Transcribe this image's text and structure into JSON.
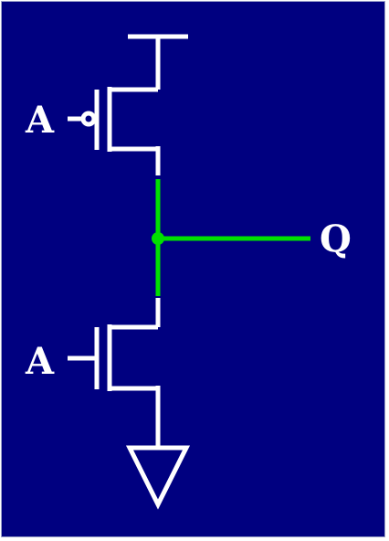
{
  "diagram": {
    "labels": {
      "pmos_gate": "A",
      "nmos_gate": "A",
      "output": "Q"
    },
    "colors": {
      "background": "#000080",
      "wire": "#ffffff",
      "output_net": "#00e000"
    }
  }
}
